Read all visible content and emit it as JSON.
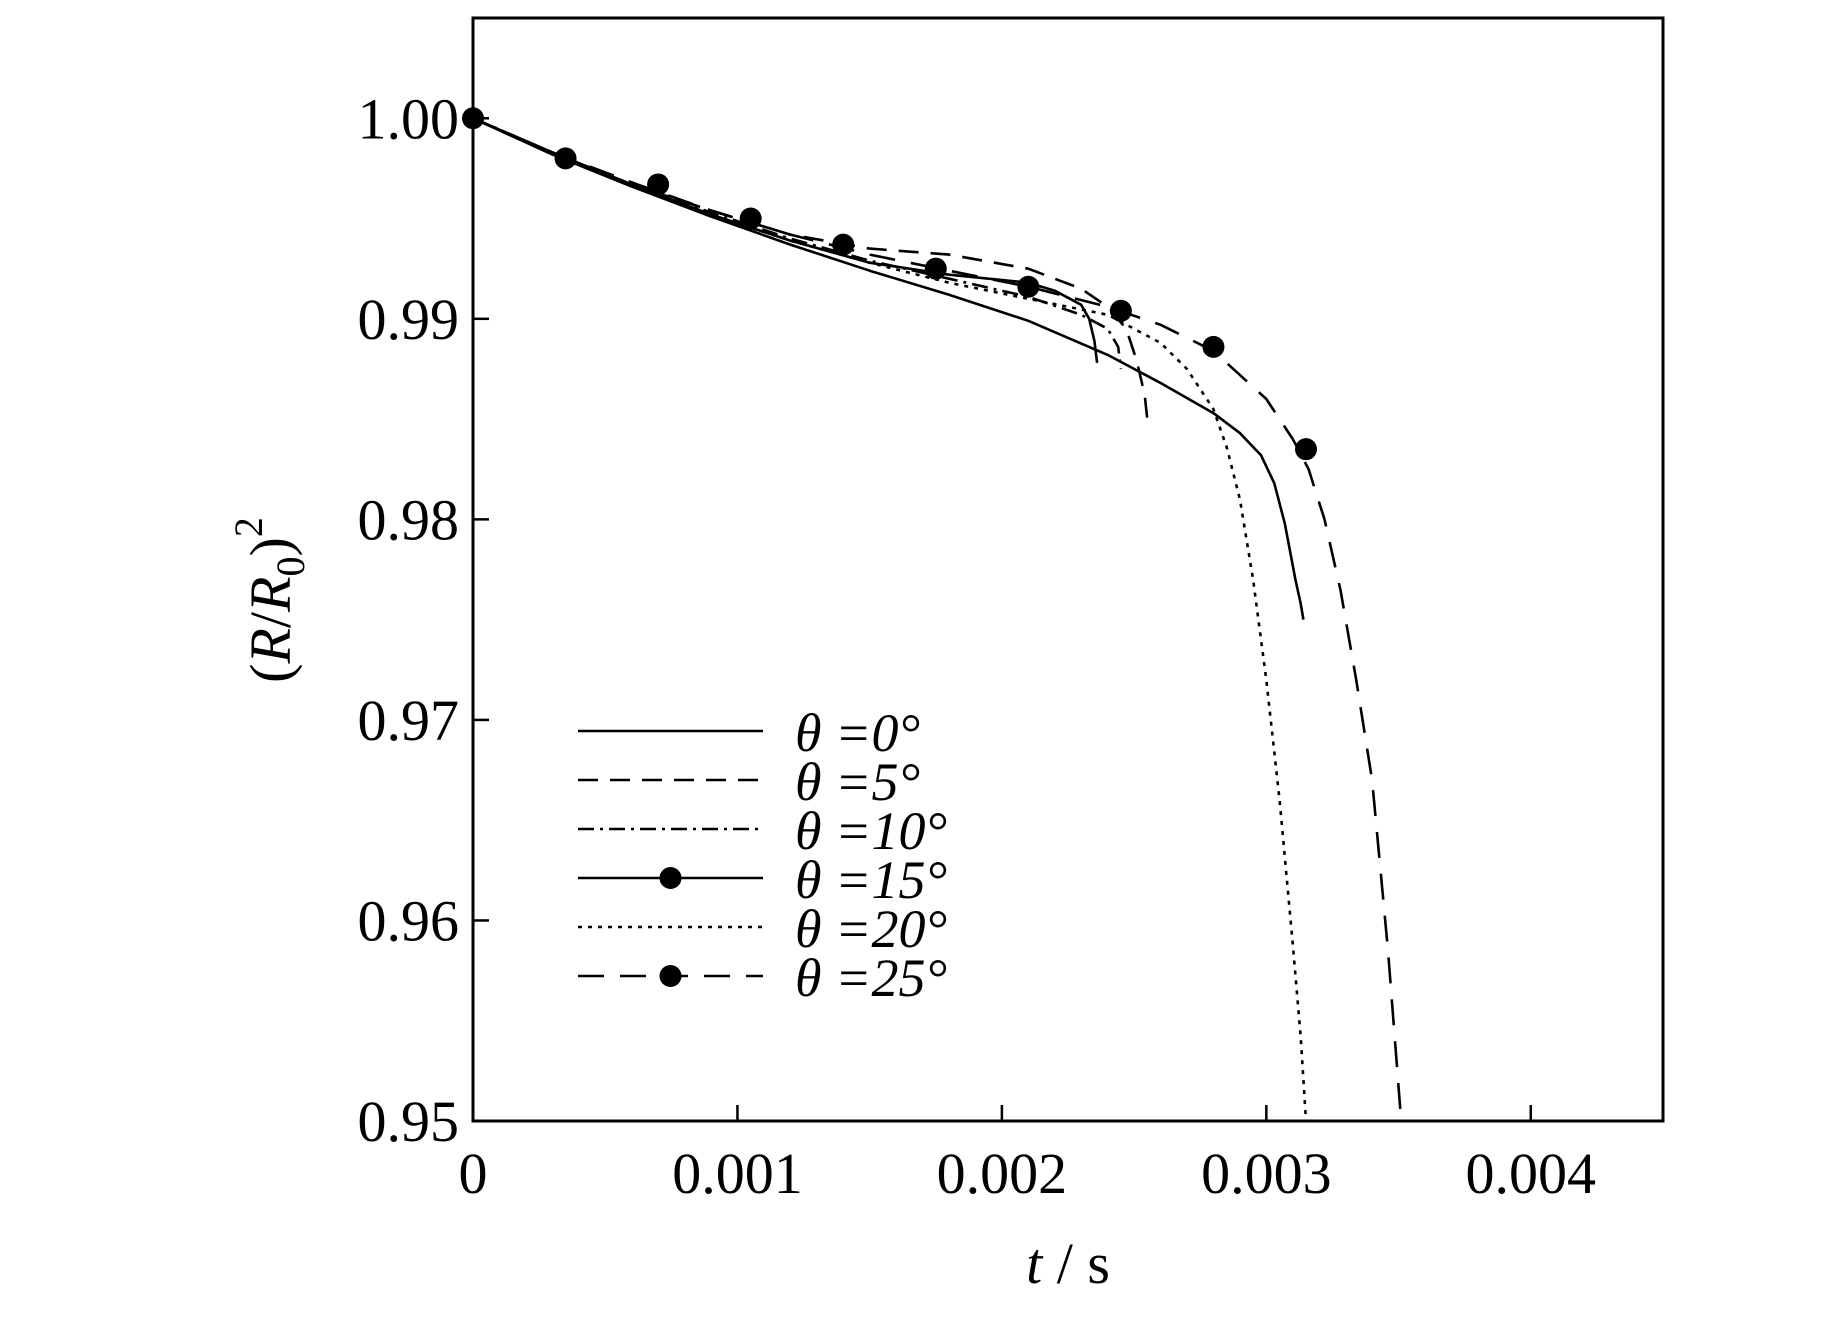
{
  "chart_data": {
    "type": "line",
    "xlabel": "t / s",
    "ylabel": "(R/R0)^2",
    "xlim": [
      0,
      0.0045
    ],
    "ylim": [
      0.95,
      1.005
    ],
    "x_ticks": [
      "0",
      "0.001",
      "0.002",
      "0.003",
      "0.004"
    ],
    "y_ticks": [
      "0.95",
      "0.96",
      "0.97",
      "0.98",
      "0.99",
      "1.00"
    ],
    "legend_position": "lower-left",
    "grid": false,
    "series": [
      {
        "name": "θ =0°",
        "line": "solid",
        "marker": "none",
        "x": [
          0,
          0.0003,
          0.0006,
          0.0009,
          0.0012,
          0.0015,
          0.0018,
          0.0021,
          0.0024,
          0.0026,
          0.0028,
          0.0029,
          0.00298,
          0.00303,
          0.00307,
          0.00311,
          0.00313,
          0.00314
        ],
        "y": [
          1.0,
          0.9982,
          0.9966,
          0.9951,
          0.9937,
          0.9924,
          0.9912,
          0.9899,
          0.9882,
          0.9868,
          0.9853,
          0.9843,
          0.9832,
          0.9818,
          0.9798,
          0.977,
          0.9758,
          0.975
        ]
      },
      {
        "name": "θ =5°",
        "line": "dashed",
        "marker": "none",
        "x": [
          0,
          0.0003,
          0.0006,
          0.0009,
          0.0012,
          0.0015,
          0.0018,
          0.0021,
          0.0023,
          0.0024,
          0.00247,
          0.00251,
          0.00254,
          0.00255
        ],
        "y": [
          1.0,
          0.9982,
          0.9967,
          0.9954,
          0.9942,
          0.9935,
          0.9932,
          0.9925,
          0.9915,
          0.9906,
          0.9895,
          0.9879,
          0.9862,
          0.985
        ]
      },
      {
        "name": "θ =10°",
        "line": "dashdot",
        "marker": "none",
        "x": [
          0,
          0.0003,
          0.0006,
          0.0009,
          0.0012,
          0.0015,
          0.0018,
          0.0021,
          0.0023,
          0.0024,
          0.00244,
          0.00245
        ],
        "y": [
          1.0,
          0.9983,
          0.9967,
          0.9953,
          0.994,
          0.9929,
          0.992,
          0.9911,
          0.9902,
          0.9895,
          0.9886,
          0.9875
        ]
      },
      {
        "name": "θ =15°",
        "line": "solid",
        "marker": "circle",
        "x": [
          0,
          0.0003,
          0.0006,
          0.0009,
          0.0012,
          0.0015,
          0.0018,
          0.0021,
          0.0022,
          0.0023,
          0.00233,
          0.00235,
          0.00236
        ],
        "y": [
          1.0,
          0.9983,
          0.9967,
          0.9952,
          0.9939,
          0.9928,
          0.9922,
          0.9918,
          0.9914,
          0.9907,
          0.99,
          0.9889,
          0.9878
        ],
        "marker_x": [
          0,
          0.00035,
          0.0007,
          0.00105,
          0.0014,
          0.00175,
          0.0021
        ],
        "marker_y": [
          1.0,
          0.998,
          0.9967,
          0.995,
          0.9937,
          0.9925,
          0.9916
        ]
      },
      {
        "name": "θ =20°",
        "line": "dotted",
        "marker": "none",
        "x": [
          0,
          0.0003,
          0.0006,
          0.0009,
          0.0012,
          0.0015,
          0.0018,
          0.0021,
          0.0024,
          0.0026,
          0.0027,
          0.0028,
          0.00285,
          0.0029,
          0.00295,
          0.003,
          0.00305,
          0.0031,
          0.00313,
          0.00315
        ],
        "y": [
          1.0,
          0.9983,
          0.9967,
          0.9952,
          0.9939,
          0.9928,
          0.9918,
          0.991,
          0.9902,
          0.9888,
          0.9875,
          0.9855,
          0.9836,
          0.981,
          0.977,
          0.972,
          0.966,
          0.9588,
          0.9542,
          0.95
        ]
      },
      {
        "name": "θ =25°",
        "line": "longdash",
        "marker": "circle",
        "x": [
          0,
          0.0003,
          0.0006,
          0.0009,
          0.0012,
          0.0015,
          0.0018,
          0.0021,
          0.0024,
          0.0026,
          0.0028,
          0.003,
          0.0031,
          0.00316,
          0.00322,
          0.00328,
          0.00334,
          0.0034,
          0.00346,
          0.00351
        ],
        "y": [
          1.0,
          0.9983,
          0.9968,
          0.9954,
          0.9942,
          0.9932,
          0.9924,
          0.9916,
          0.9906,
          0.9897,
          0.9884,
          0.986,
          0.984,
          0.9825,
          0.98,
          0.9765,
          0.972,
          0.967,
          0.9585,
          0.95
        ],
        "marker_x": [
          0.00245,
          0.0028,
          0.00315
        ],
        "marker_y": [
          0.9904,
          0.9886,
          0.9835
        ]
      }
    ]
  }
}
